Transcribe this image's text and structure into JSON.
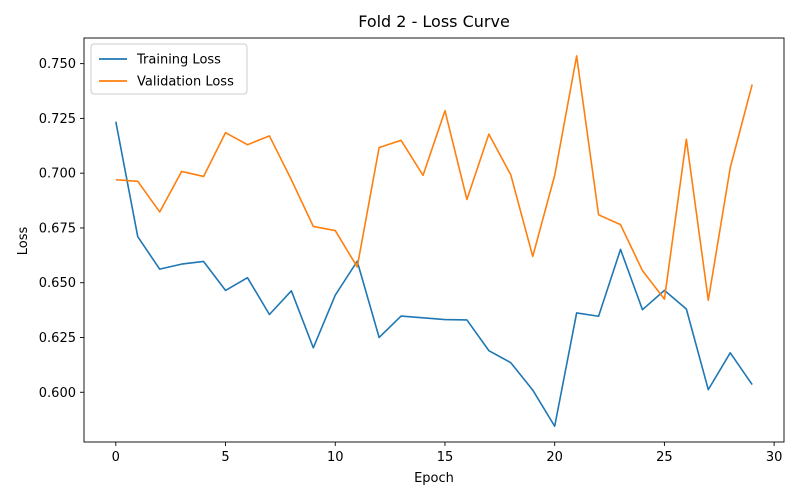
{
  "chart_data": {
    "type": "line",
    "title": "Fold 2 - Loss Curve",
    "xlabel": "Epoch",
    "ylabel": "Loss",
    "xlim": [
      -1.45,
      30.45
    ],
    "ylim": [
      0.5773,
      0.7617
    ],
    "x_ticks": [
      0,
      5,
      10,
      15,
      20,
      25,
      30
    ],
    "y_ticks": [
      0.6,
      0.625,
      0.65,
      0.675,
      0.7,
      0.725,
      0.75
    ],
    "y_tick_labels": [
      "0.600",
      "0.625",
      "0.650",
      "0.675",
      "0.700",
      "0.725",
      "0.750"
    ],
    "x_tick_labels": [
      "0",
      "5",
      "10",
      "15",
      "20",
      "25",
      "30"
    ],
    "legend_position": "top-left",
    "grid": false,
    "x": [
      0,
      1,
      2,
      3,
      4,
      5,
      6,
      7,
      8,
      9,
      10,
      11,
      12,
      13,
      14,
      15,
      16,
      17,
      18,
      19,
      20,
      21,
      22,
      23,
      24,
      25,
      26,
      27,
      28,
      29
    ],
    "series": [
      {
        "name": "Training Loss",
        "color": "#1f77b4",
        "values": [
          0.7235,
          0.671,
          0.6562,
          0.6585,
          0.6597,
          0.6465,
          0.6523,
          0.6355,
          0.6463,
          0.6203,
          0.6443,
          0.6598,
          0.625,
          0.6348,
          0.634,
          0.6332,
          0.633,
          0.619,
          0.6135,
          0.601,
          0.5845,
          0.6362,
          0.6347,
          0.6652,
          0.6377,
          0.6465,
          0.638,
          0.6012,
          0.618,
          0.6035
        ]
      },
      {
        "name": "Validation Loss",
        "color": "#ff7f0e",
        "values": [
          0.697,
          0.6963,
          0.6823,
          0.7008,
          0.6985,
          0.7185,
          0.713,
          0.717,
          0.697,
          0.6757,
          0.6738,
          0.6572,
          0.7117,
          0.715,
          0.699,
          0.7285,
          0.688,
          0.7178,
          0.6992,
          0.662,
          0.699,
          0.7535,
          0.681,
          0.6765,
          0.6555,
          0.6425,
          0.7155,
          0.642,
          0.7025,
          0.7405
        ]
      }
    ]
  }
}
